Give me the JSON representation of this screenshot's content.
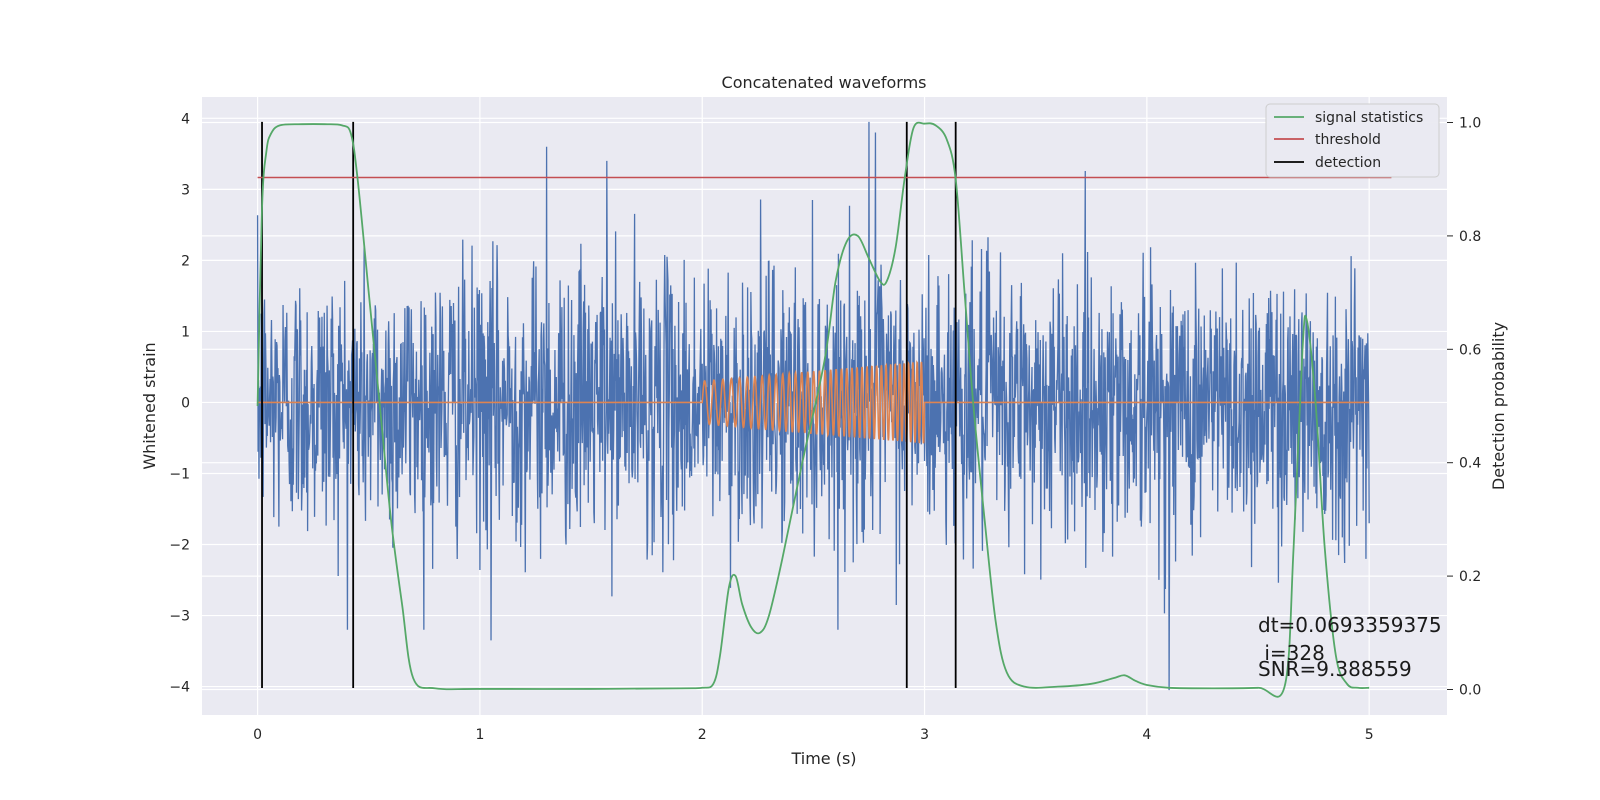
{
  "chart_data": {
    "type": "line",
    "title": "Concatenated waveforms",
    "xlabel": "Time (s)",
    "ylabel": "Whitened strain",
    "y2label": "Detection probability",
    "xlim": [
      -0.25,
      5.35
    ],
    "ylim": [
      -4.4,
      4.3
    ],
    "y2lim": [
      -0.045,
      1.045
    ],
    "x_ticks": [
      0,
      1,
      2,
      3,
      4,
      5
    ],
    "y_ticks": [
      -4,
      -3,
      -2,
      -1,
      0,
      1,
      2,
      3,
      4
    ],
    "y2_ticks": [
      0.0,
      0.2,
      0.4,
      0.6,
      0.8,
      1.0
    ],
    "grid": true,
    "legend_position": "top-right",
    "colors": {
      "strain": "#4c72b0",
      "template": "#dd8452",
      "signal_statistics": "#55a868",
      "threshold": "#c44e52",
      "detection": "#000000",
      "background": "#eaeaf2",
      "grid": "#ffffff"
    },
    "series": [
      {
        "name": "signal statistics",
        "axis": "right",
        "x": [
          0.0,
          0.02,
          0.04,
          0.06,
          0.1,
          0.2,
          0.3,
          0.38,
          0.42,
          0.45,
          0.5,
          0.55,
          0.6,
          0.65,
          0.7,
          0.8,
          1.0,
          1.5,
          1.9,
          2.0,
          2.05,
          2.08,
          2.12,
          2.15,
          2.18,
          2.22,
          2.26,
          2.3,
          2.36,
          2.45,
          2.55,
          2.6,
          2.65,
          2.7,
          2.75,
          2.8,
          2.83,
          2.87,
          2.91,
          2.95,
          3.0,
          3.05,
          3.1,
          3.14,
          3.18,
          3.22,
          3.27,
          3.32,
          3.37,
          3.45,
          3.6,
          3.75,
          3.85,
          3.9,
          3.95,
          4.0,
          4.1,
          4.3,
          4.5,
          4.62,
          4.66,
          4.7,
          4.72,
          4.76,
          4.8,
          4.85,
          4.9,
          4.95,
          5.0
        ],
        "values": [
          0.5,
          0.85,
          0.95,
          0.98,
          0.995,
          0.997,
          0.997,
          0.995,
          0.98,
          0.9,
          0.7,
          0.5,
          0.3,
          0.15,
          0.02,
          0.002,
          0.001,
          0.001,
          0.002,
          0.003,
          0.01,
          0.06,
          0.18,
          0.2,
          0.15,
          0.11,
          0.1,
          0.13,
          0.23,
          0.4,
          0.58,
          0.72,
          0.79,
          0.8,
          0.76,
          0.72,
          0.72,
          0.78,
          0.9,
          0.99,
          0.998,
          0.995,
          0.97,
          0.9,
          0.7,
          0.5,
          0.3,
          0.12,
          0.03,
          0.005,
          0.005,
          0.01,
          0.02,
          0.025,
          0.015,
          0.008,
          0.003,
          0.002,
          0.003,
          0.006,
          0.25,
          0.6,
          0.65,
          0.5,
          0.25,
          0.06,
          0.01,
          0.003,
          0.003
        ]
      },
      {
        "name": "threshold",
        "axis": "right",
        "x": [
          0.0,
          5.1
        ],
        "values": [
          0.903,
          0.903
        ]
      },
      {
        "name": "detection",
        "axis": "left",
        "x_lines": [
          0.02,
          0.43,
          2.92,
          3.14
        ],
        "y_range": [
          -4.02,
          3.95
        ]
      }
    ],
    "strain_noise": {
      "axis": "left",
      "x_range": [
        0.0,
        5.0
      ],
      "typical_range": [
        -2.5,
        2.5
      ],
      "peak_values": [
        3.95,
        3.8,
        3.6,
        3.4,
        -3.35,
        -4.05
      ]
    },
    "template": {
      "axis": "left",
      "x_range": [
        2.0,
        3.0
      ],
      "flat_value": 0,
      "amplitude_start": 0.3,
      "amplitude_end": 0.58,
      "cycles": 38
    },
    "annotation": {
      "line1": "dt=0.0693359375",
      "line2": " i=328",
      "line3": "SNR=9.388559"
    }
  }
}
